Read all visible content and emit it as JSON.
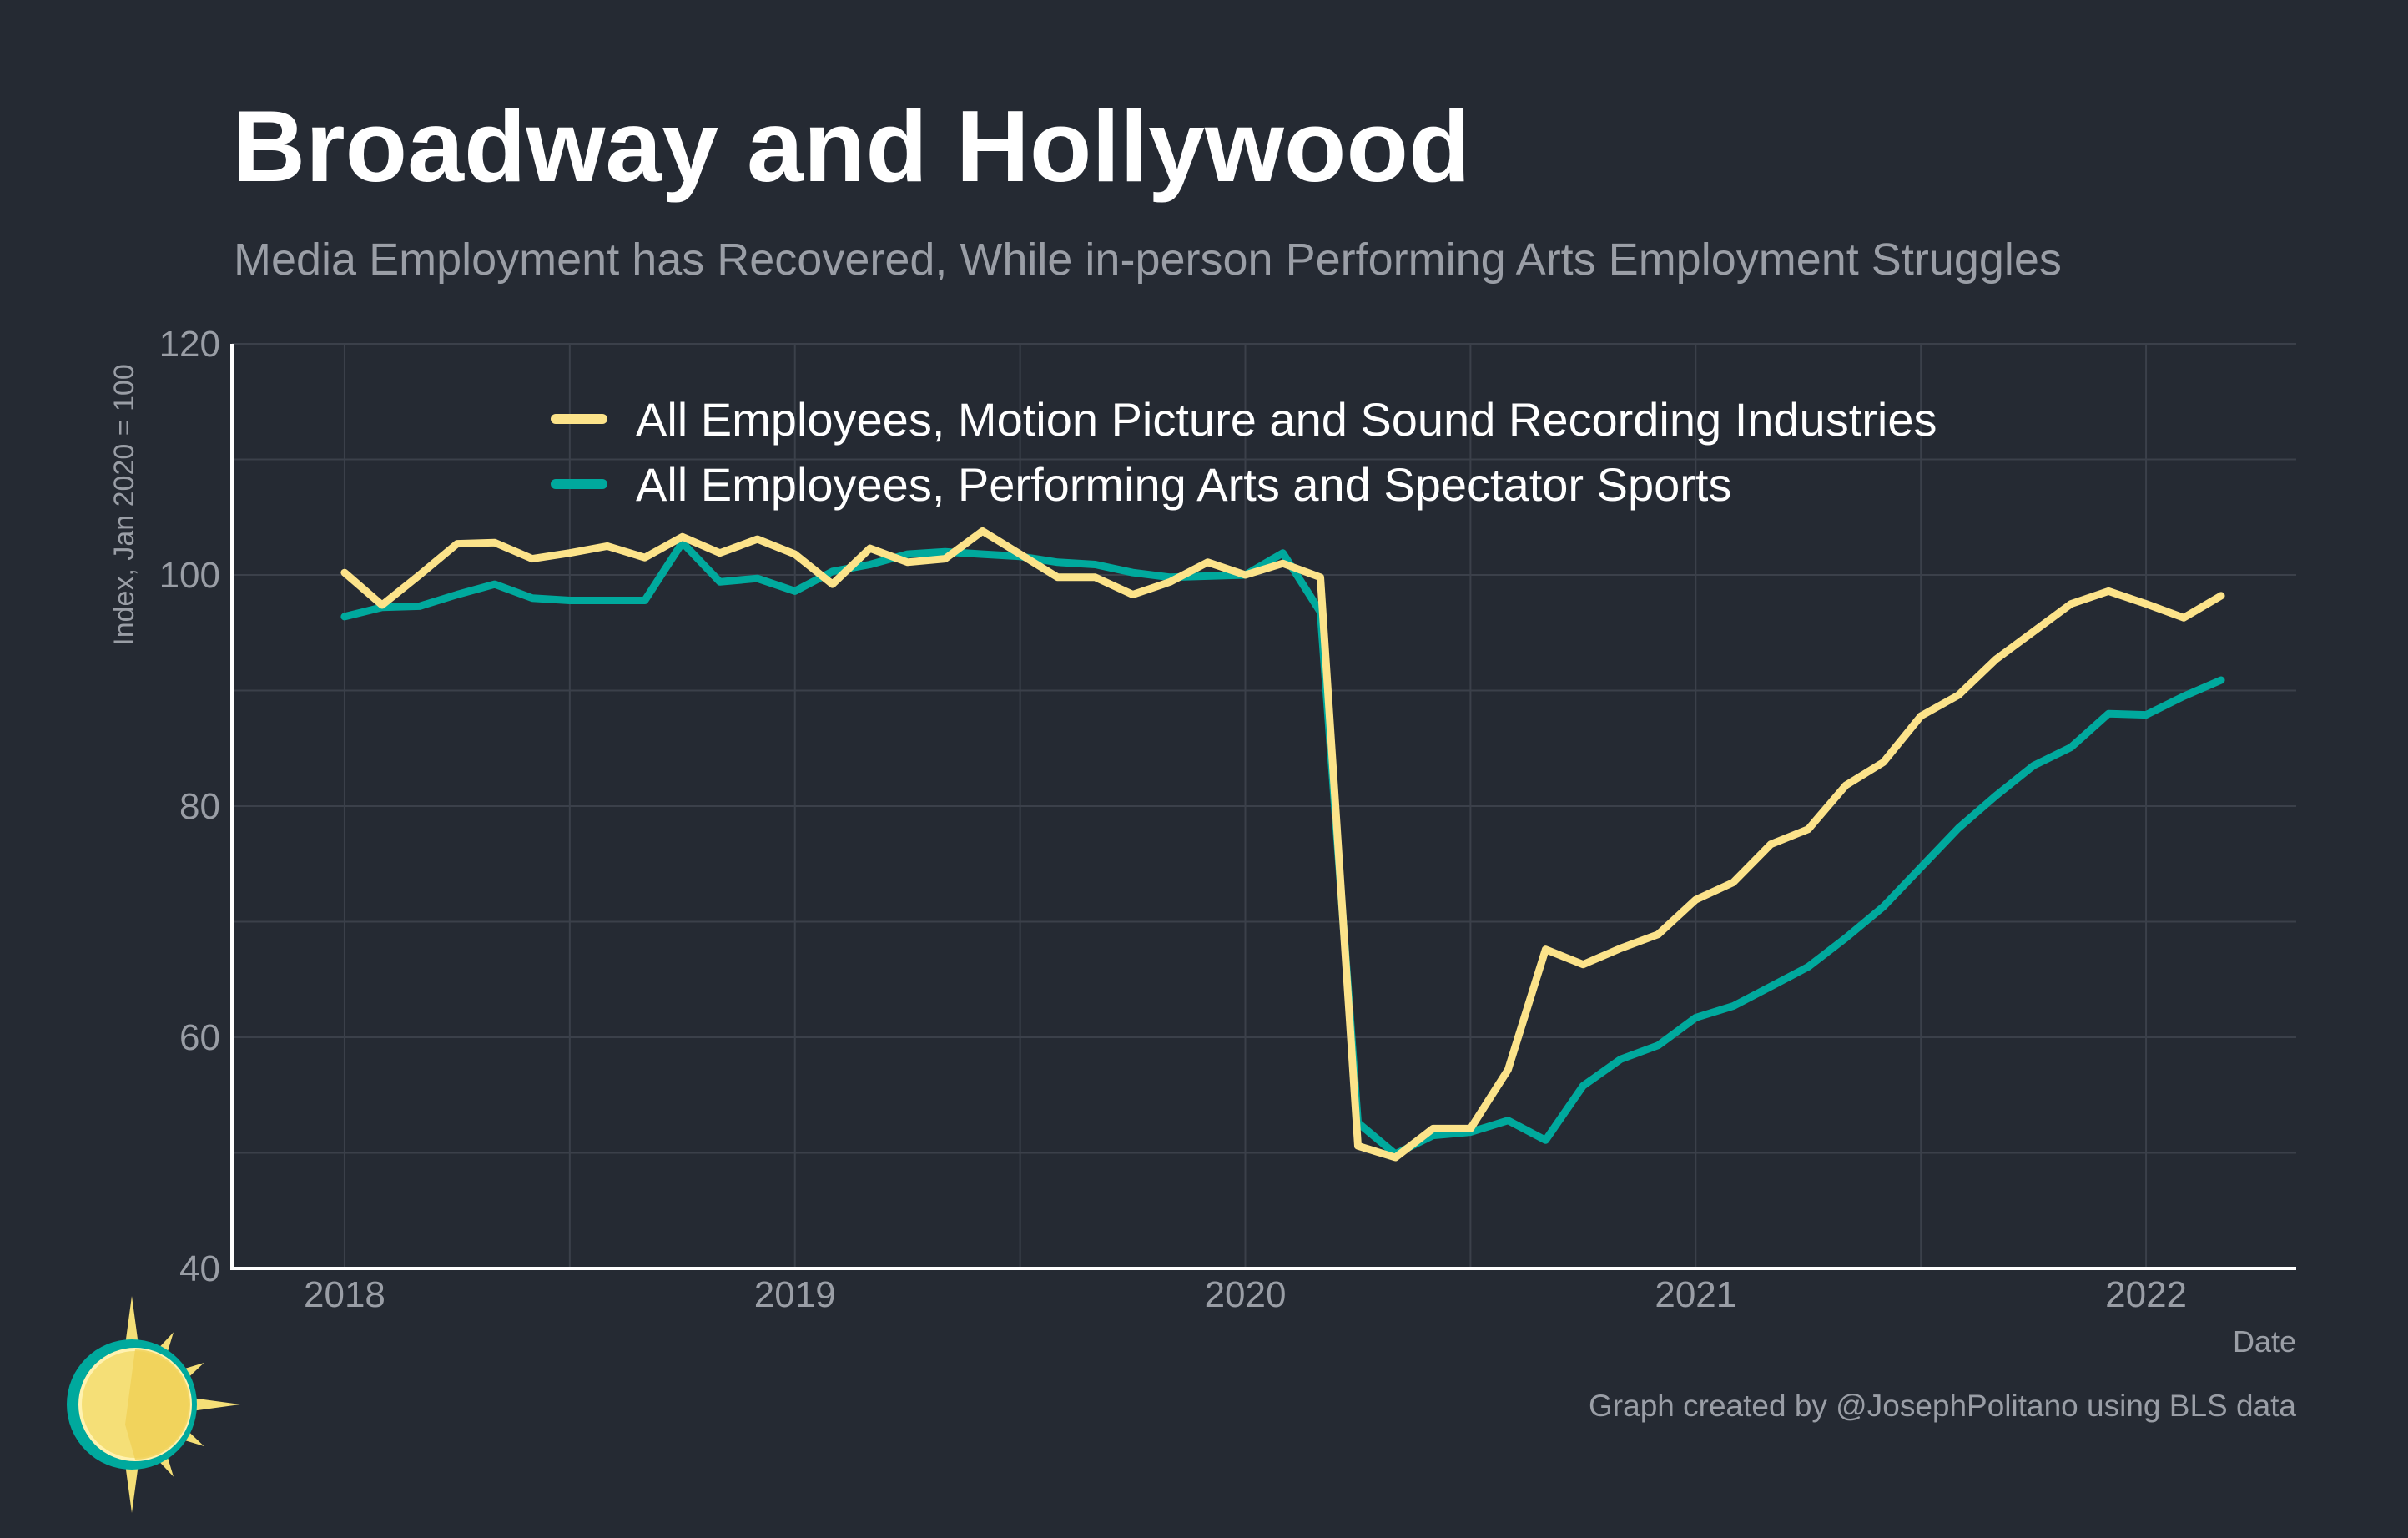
{
  "title": "Broadway and Hollywood",
  "subtitle": "Media Employment has Recovered, While in-person Performing Arts Employment Struggles",
  "credit": "Graph created by @JosephPolitano using BLS data",
  "logo": "sun-logo",
  "colors": {
    "background": "#252a33",
    "series_yellow": "#fce38a",
    "series_teal": "#00a99d",
    "grid": "#3b404a"
  },
  "chart_data": {
    "type": "line",
    "xlabel": "Date",
    "ylabel": "Index, Jan 2020 = 100",
    "ylim": [
      40,
      120
    ],
    "yticks": [
      40,
      60,
      80,
      100,
      120
    ],
    "xticks": [
      "2018",
      "2019",
      "2020",
      "2021",
      "2022"
    ],
    "xlim": [
      "2017-10",
      "2022-05"
    ],
    "grid": true,
    "legend_position": "top",
    "x": [
      "2018-01",
      "2018-02",
      "2018-03",
      "2018-04",
      "2018-05",
      "2018-06",
      "2018-07",
      "2018-08",
      "2018-09",
      "2018-10",
      "2018-11",
      "2018-12",
      "2019-01",
      "2019-02",
      "2019-03",
      "2019-04",
      "2019-05",
      "2019-06",
      "2019-07",
      "2019-08",
      "2019-09",
      "2019-10",
      "2019-11",
      "2019-12",
      "2020-01",
      "2020-02",
      "2020-03",
      "2020-04",
      "2020-05",
      "2020-06",
      "2020-07",
      "2020-08",
      "2020-09",
      "2020-10",
      "2020-11",
      "2020-12",
      "2021-01",
      "2021-02",
      "2021-03",
      "2021-04",
      "2021-05",
      "2021-06",
      "2021-07",
      "2021-08",
      "2021-09",
      "2021-10",
      "2021-11",
      "2021-12",
      "2022-01",
      "2022-02",
      "2022-03"
    ],
    "series": [
      {
        "name": "All Employees, Motion Picture and Sound Recording Industries",
        "color": "#fce38a",
        "values": [
          100.2,
          97.4,
          100.0,
          102.7,
          102.8,
          101.4,
          101.9,
          102.5,
          101.5,
          103.3,
          101.9,
          103.1,
          101.8,
          99.2,
          102.3,
          101.1,
          101.4,
          103.8,
          101.8,
          99.8,
          99.8,
          98.3,
          99.4,
          101.1,
          100.0,
          101.0,
          99.8,
          50.6,
          49.6,
          52.1,
          52.1,
          57.2,
          67.6,
          66.3,
          67.7,
          68.9,
          71.9,
          73.4,
          76.7,
          78.0,
          81.8,
          83.8,
          87.8,
          89.6,
          92.7,
          95.1,
          97.5,
          98.6,
          97.5,
          96.3,
          98.2
        ]
      },
      {
        "name": "All Employees, Performing Arts and Spectator Sports",
        "color": "#00a99d",
        "values": [
          96.4,
          97.2,
          97.3,
          98.3,
          99.2,
          98.0,
          97.8,
          97.8,
          97.8,
          102.8,
          99.4,
          99.7,
          98.6,
          100.3,
          100.9,
          101.8,
          102.0,
          101.8,
          101.6,
          101.1,
          100.9,
          100.2,
          99.8,
          99.9,
          100.0,
          101.9,
          96.8,
          52.6,
          49.9,
          51.5,
          51.8,
          52.8,
          51.1,
          55.8,
          58.1,
          59.3,
          61.7,
          62.7,
          64.4,
          66.1,
          68.6,
          71.3,
          74.7,
          78.1,
          80.9,
          83.5,
          85.1,
          88.0,
          87.9,
          89.5,
          90.9
        ]
      }
    ]
  }
}
